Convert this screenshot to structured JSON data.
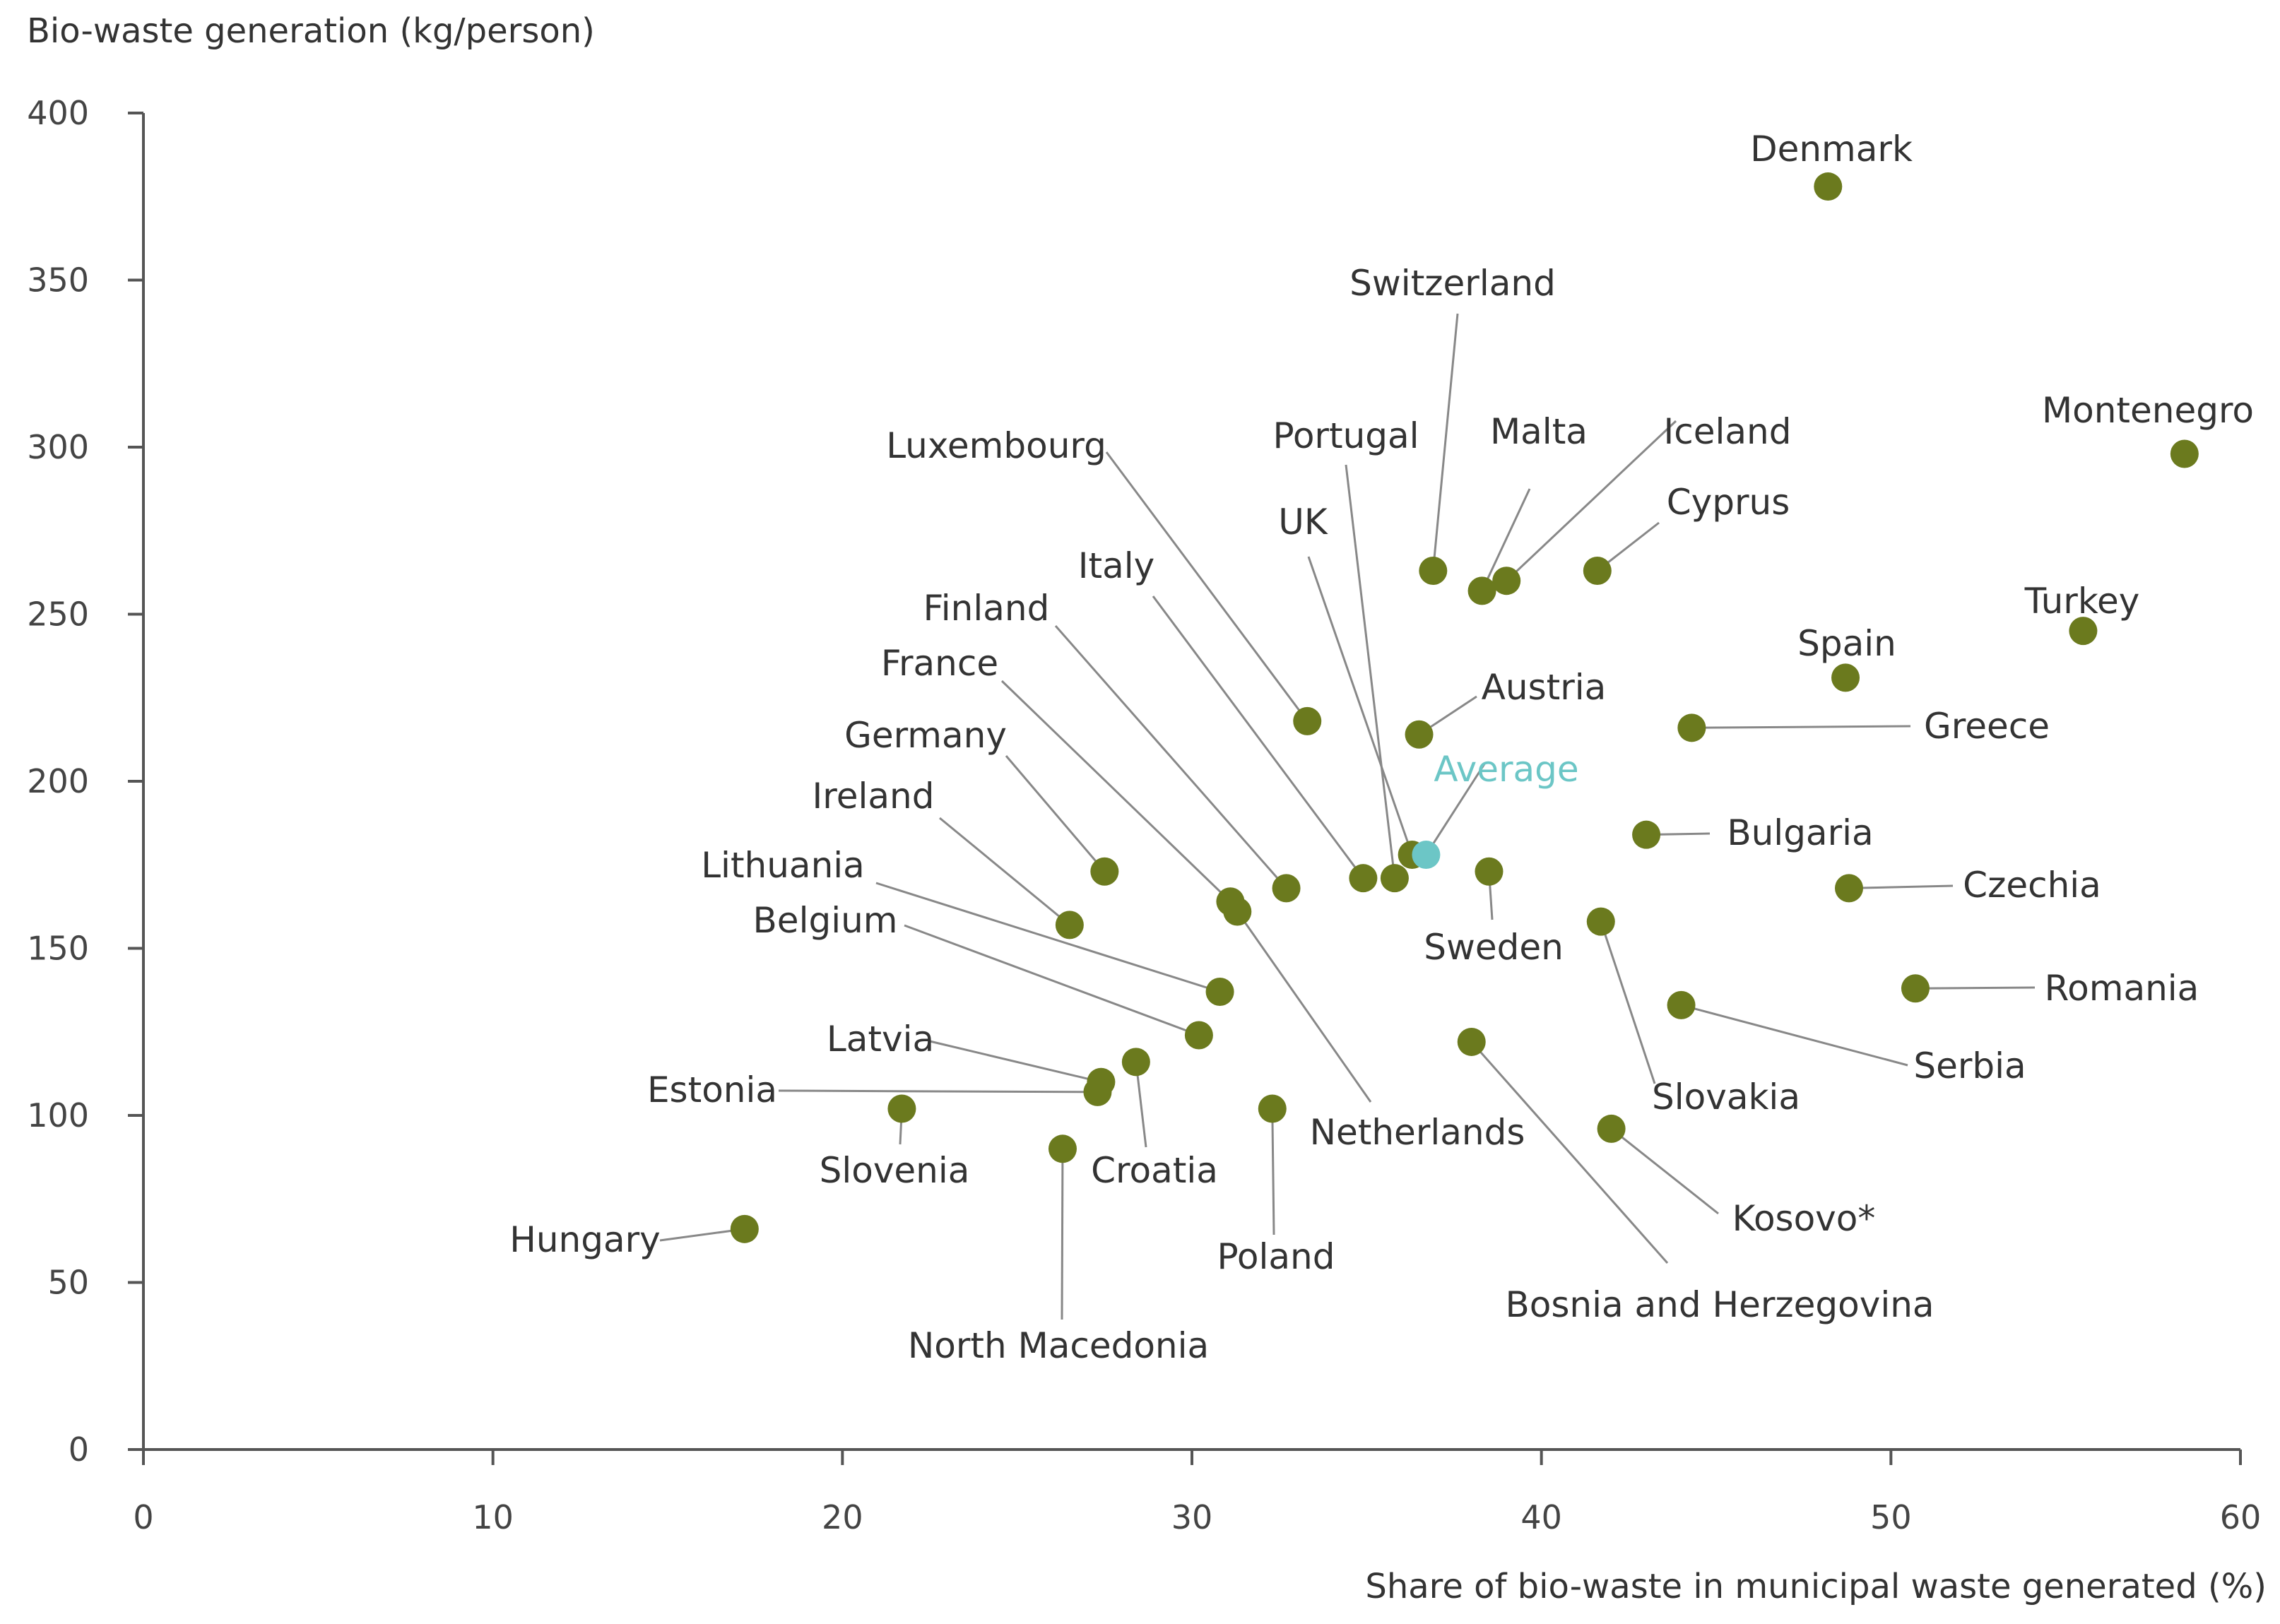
{
  "chart_data": {
    "type": "scatter",
    "title": "",
    "xlabel": "Share of bio-waste in municipal waste generated (%)",
    "ylabel": "Bio-waste generation (kg/person)",
    "xlim": [
      0,
      60
    ],
    "ylim": [
      0,
      400
    ],
    "xticks": [
      0,
      10,
      20,
      30,
      40,
      50,
      60
    ],
    "yticks": [
      0,
      50,
      100,
      150,
      200,
      250,
      300,
      350,
      400
    ],
    "grid": false,
    "colors": {
      "point": "#6b7a1e",
      "average": "#6cc6c6",
      "text": "#333333"
    },
    "points": [
      {
        "name": "Denmark",
        "x": 48.2,
        "y": 378
      },
      {
        "name": "Montenegro",
        "x": 58.4,
        "y": 298
      },
      {
        "name": "Turkey",
        "x": 55.5,
        "y": 245
      },
      {
        "name": "Spain",
        "x": 48.7,
        "y": 231
      },
      {
        "name": "Switzerland",
        "x": 36.9,
        "y": 263
      },
      {
        "name": "Malta",
        "x": 38.3,
        "y": 257
      },
      {
        "name": "Iceland",
        "x": 39.0,
        "y": 260
      },
      {
        "name": "Cyprus",
        "x": 41.6,
        "y": 263
      },
      {
        "name": "Greece",
        "x": 44.3,
        "y": 216
      },
      {
        "name": "Austria",
        "x": 36.5,
        "y": 214
      },
      {
        "name": "Luxembourg",
        "x": 33.3,
        "y": 218
      },
      {
        "name": "UK",
        "x": 36.3,
        "y": 178
      },
      {
        "name": "Portugal",
        "x": 35.8,
        "y": 171
      },
      {
        "name": "Italy",
        "x": 34.9,
        "y": 171
      },
      {
        "name": "Finland",
        "x": 32.7,
        "y": 168
      },
      {
        "name": "France",
        "x": 31.1,
        "y": 164
      },
      {
        "name": "Netherlands",
        "x": 31.3,
        "y": 161
      },
      {
        "name": "Germany",
        "x": 27.5,
        "y": 173
      },
      {
        "name": "Ireland",
        "x": 26.5,
        "y": 157
      },
      {
        "name": "Lithuania",
        "x": 30.8,
        "y": 137
      },
      {
        "name": "Belgium",
        "x": 30.2,
        "y": 124
      },
      {
        "name": "Sweden",
        "x": 38.5,
        "y": 173
      },
      {
        "name": "Bulgaria",
        "x": 43.0,
        "y": 184
      },
      {
        "name": "Czechia",
        "x": 48.8,
        "y": 168
      },
      {
        "name": "Slovakia",
        "x": 41.7,
        "y": 158
      },
      {
        "name": "Romania",
        "x": 50.7,
        "y": 138
      },
      {
        "name": "Serbia",
        "x": 44.0,
        "y": 133
      },
      {
        "name": "Bosnia and Herzegovina",
        "x": 38.0,
        "y": 122
      },
      {
        "name": "Kosovo*",
        "x": 42.0,
        "y": 96
      },
      {
        "name": "Latvia",
        "x": 27.4,
        "y": 110
      },
      {
        "name": "Estonia",
        "x": 27.3,
        "y": 107
      },
      {
        "name": "Croatia",
        "x": 28.4,
        "y": 116
      },
      {
        "name": "Slovenia",
        "x": 21.7,
        "y": 102
      },
      {
        "name": "Poland",
        "x": 32.3,
        "y": 102
      },
      {
        "name": "North Macedonia",
        "x": 26.3,
        "y": 90
      },
      {
        "name": "Hungary",
        "x": 17.2,
        "y": 66
      }
    ],
    "average": {
      "name": "Average",
      "x": 36.7,
      "y": 178
    }
  }
}
